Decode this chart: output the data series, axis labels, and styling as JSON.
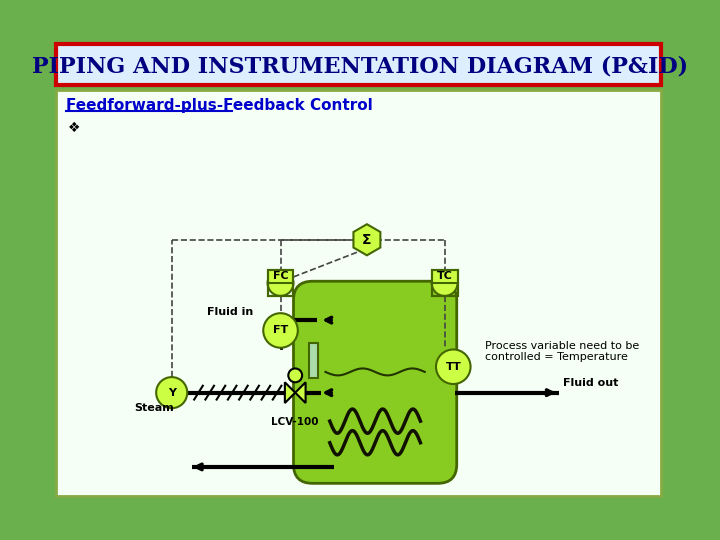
{
  "title": "PIPING AND INSTRUMENTATION DIAGRAM (P&ID)",
  "subtitle": "Feedforward-plus-Feedback Control",
  "bg_outer": "#6ab04c",
  "title_color": "#000080",
  "subtitle_color": "#0000cc",
  "instrument_fill": "#ccff44",
  "instrument_border": "#446600",
  "vessel_fill": "#88cc22",
  "vessel_border": "#446600",
  "dashed_color": "#444444",
  "annotation_text": "Process variable need to be\ncontrolled = Temperature",
  "bullet_char": "❖"
}
